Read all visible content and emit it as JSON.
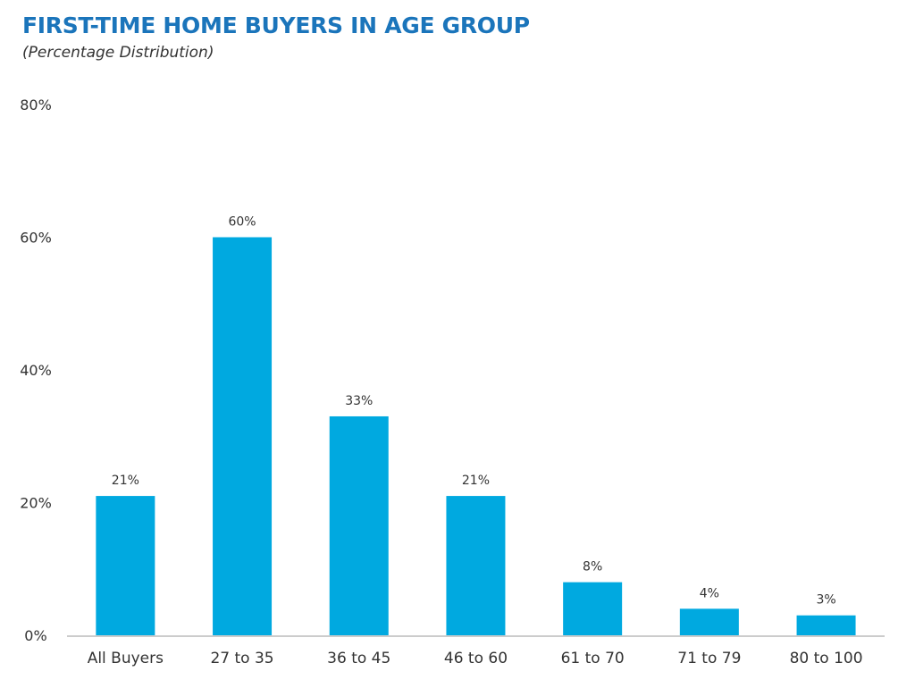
{
  "chart_data": {
    "type": "bar",
    "title": "FIRST-TIME HOME BUYERS IN AGE GROUP",
    "subtitle": "(Percentage Distribution)",
    "categories": [
      "All Buyers",
      "27 to 35",
      "36 to 45",
      "46 to 60",
      "61 to 70",
      "71 to 79",
      "80 to 100"
    ],
    "values": [
      21,
      60,
      33,
      21,
      8,
      4,
      3
    ],
    "data_labels": [
      "21%",
      "60%",
      "33%",
      "21%",
      "8%",
      "4%",
      "3%"
    ],
    "ylim": [
      0,
      80
    ],
    "yticks": [
      0,
      20,
      40,
      60,
      80
    ],
    "ytick_labels": [
      "0%",
      "20%",
      "40%",
      "60%",
      "80%"
    ],
    "xlabel": "",
    "ylabel": "",
    "grid": false,
    "legend": "none",
    "colors": {
      "bar": "#00a9e0",
      "title": "#1b75bb",
      "axis": "#bbbbbb",
      "text": "#333333"
    }
  }
}
